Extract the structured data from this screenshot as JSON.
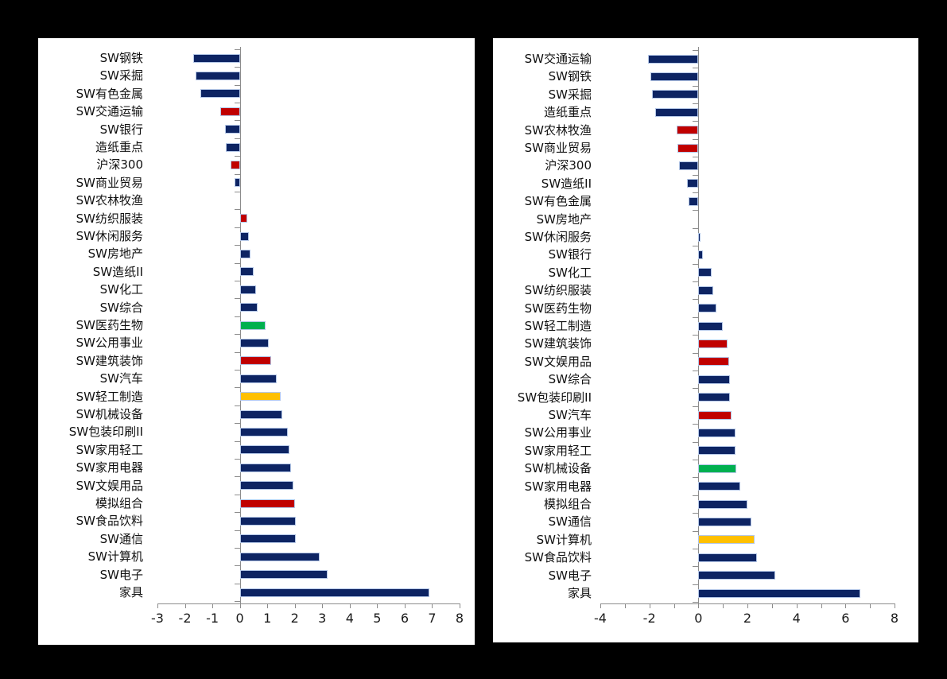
{
  "page": {
    "background_color": "#000000",
    "panel_background_color": "#ffffff",
    "axis_color": "#8c8c8c",
    "text_color": "#111111"
  },
  "palette": {
    "navy": "#0d2463",
    "red": "#c00000",
    "green": "#00b050",
    "gold": "#ffc000",
    "bar_border": "#b4c7e7"
  },
  "chart_data": [
    {
      "type": "bar",
      "orientation": "horizontal",
      "title": "",
      "xlabel": "",
      "ylabel": "",
      "xlim": [
        -3,
        8
      ],
      "grid": false,
      "legend": null,
      "tick_values": [
        -3,
        -2,
        -1,
        0,
        1,
        2,
        3,
        4,
        5,
        6,
        7,
        8
      ],
      "tick_labels": [
        "-3",
        "-2",
        "-1",
        "0",
        "1",
        "2",
        "3",
        "4",
        "5",
        "6",
        "7",
        "8"
      ],
      "categories": [
        "SW钢铁",
        "SW采掘",
        "SW有色金属",
        "SW交通运输",
        "SW银行",
        "造纸重点",
        "沪深300",
        "SW商业贸易",
        "SW农林牧渔",
        "SW纺织服装",
        "SW休闲服务",
        "SW房地产",
        "SW造纸II",
        "SW化工",
        "SW综合",
        "SW医药生物",
        "SW公用事业",
        "SW建筑装饰",
        "SW汽车",
        "SW轻工制造",
        "SW机械设备",
        "SW包装印刷II",
        "SW家用轻工",
        "SW家用电器",
        "SW文娱用品",
        "模拟组合",
        "SW食品饮料",
        "SW通信",
        "SW计算机",
        "SW电子",
        "家具"
      ],
      "values": [
        -1.7,
        -1.6,
        -1.45,
        -0.7,
        -0.55,
        -0.5,
        -0.35,
        -0.2,
        0,
        0.28,
        0.32,
        0.4,
        0.5,
        0.6,
        0.65,
        0.95,
        1.05,
        1.15,
        1.35,
        1.5,
        1.55,
        1.75,
        1.8,
        1.85,
        1.95,
        2.0,
        2.05,
        2.05,
        2.9,
        3.2,
        6.9
      ],
      "colors": [
        "navy",
        "navy",
        "navy",
        "red",
        "navy",
        "navy",
        "red",
        "navy",
        "navy",
        "red",
        "navy",
        "navy",
        "navy",
        "navy",
        "navy",
        "green",
        "navy",
        "red",
        "navy",
        "gold",
        "navy",
        "navy",
        "navy",
        "navy",
        "navy",
        "red",
        "navy",
        "navy",
        "navy",
        "navy",
        "navy"
      ]
    },
    {
      "type": "bar",
      "orientation": "horizontal",
      "title": "",
      "xlabel": "",
      "ylabel": "",
      "xlim": [
        -4,
        8
      ],
      "grid": false,
      "legend": null,
      "tick_values": [
        -4,
        -3,
        -2,
        -1,
        0,
        1,
        2,
        3,
        4,
        5,
        6,
        7,
        8
      ],
      "tick_labels": [
        "-4",
        "",
        "-2",
        "",
        "0",
        "",
        "2",
        "",
        "4",
        "",
        "6",
        "",
        "8"
      ],
      "categories": [
        "SW交通运输",
        "SW钢铁",
        "SW采掘",
        "造纸重点",
        "SW农林牧渔",
        "SW商业贸易",
        "沪深300",
        "SW造纸II",
        "SW有色金属",
        "SW房地产",
        "SW休闲服务",
        "SW银行",
        "SW化工",
        "SW纺织服装",
        "SW医药生物",
        "SW轻工制造",
        "SW建筑装饰",
        "SW文娱用品",
        "SW综合",
        "SW包装印刷II",
        "SW汽车",
        "SW公用事业",
        "SW家用轻工",
        "SW机械设备",
        "SW家用电器",
        "模拟组合",
        "SW通信",
        "SW计算机",
        "SW食品饮料",
        "SW电子",
        "家具"
      ],
      "values": [
        -2.05,
        -1.95,
        -1.9,
        -1.75,
        -0.9,
        -0.85,
        -0.8,
        -0.45,
        -0.4,
        0,
        0.1,
        0.2,
        0.55,
        0.6,
        0.75,
        1.0,
        1.2,
        1.25,
        1.3,
        1.3,
        1.35,
        1.5,
        1.5,
        1.55,
        1.7,
        2.0,
        2.15,
        2.3,
        2.4,
        3.15,
        6.6
      ],
      "colors": [
        "navy",
        "navy",
        "navy",
        "navy",
        "red",
        "red",
        "navy",
        "navy",
        "navy",
        "navy",
        "navy",
        "navy",
        "navy",
        "navy",
        "navy",
        "navy",
        "red",
        "red",
        "navy",
        "navy",
        "red",
        "navy",
        "navy",
        "green",
        "navy",
        "navy",
        "navy",
        "gold",
        "navy",
        "navy",
        "navy"
      ]
    }
  ]
}
